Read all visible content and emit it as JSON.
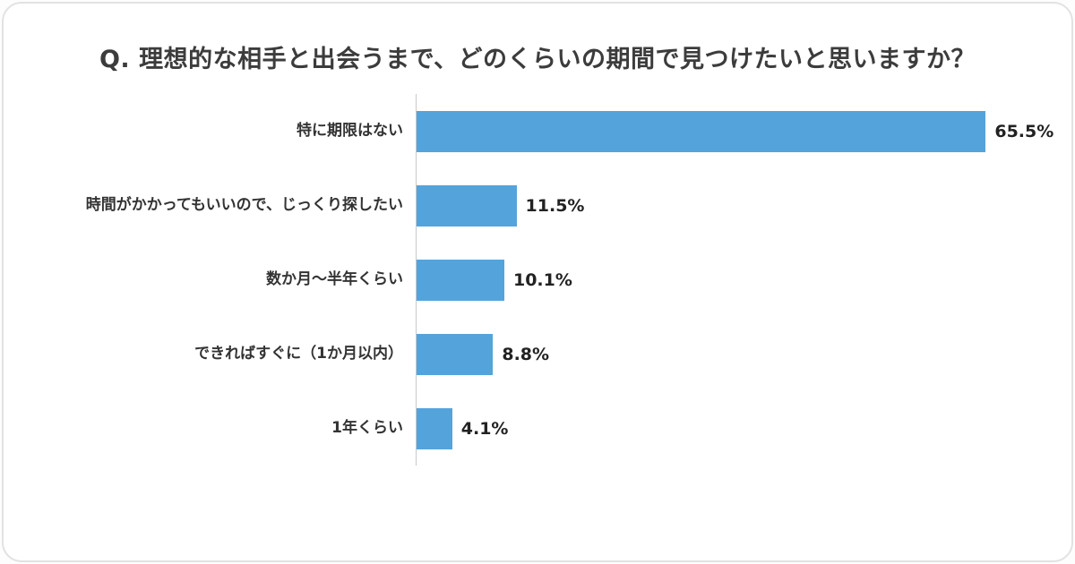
{
  "title": "Q. 理想的な相手と出会うまで、どのくらいの期間で見つけたいと思いますか？",
  "chart_data": {
    "type": "bar",
    "orientation": "horizontal",
    "title": "Q. 理想的な相手と出会うまで、どのくらいの期間で見つけたいと思いますか？",
    "categories": [
      "特に期限はない",
      "時間がかかってもいいので、じっくり探したい",
      "数か月〜半年くらい",
      "できればすぐに（1か月以内）",
      "1年くらい"
    ],
    "values": [
      65.5,
      11.5,
      10.1,
      8.8,
      4.1
    ],
    "value_labels": [
      "65.5%",
      "11.5%",
      "10.1%",
      "8.8%",
      "4.1%"
    ],
    "unit": "%",
    "xlim": [
      0,
      70
    ],
    "grid": false,
    "legend": false,
    "bar_color": "#55a3db",
    "axis_color": "#c9c9c9",
    "title_color": "#3c3c3c",
    "label_color": "#333333",
    "value_color": "#222222",
    "background_color": "#ffffff",
    "border_color": "#e2e2e2"
  }
}
